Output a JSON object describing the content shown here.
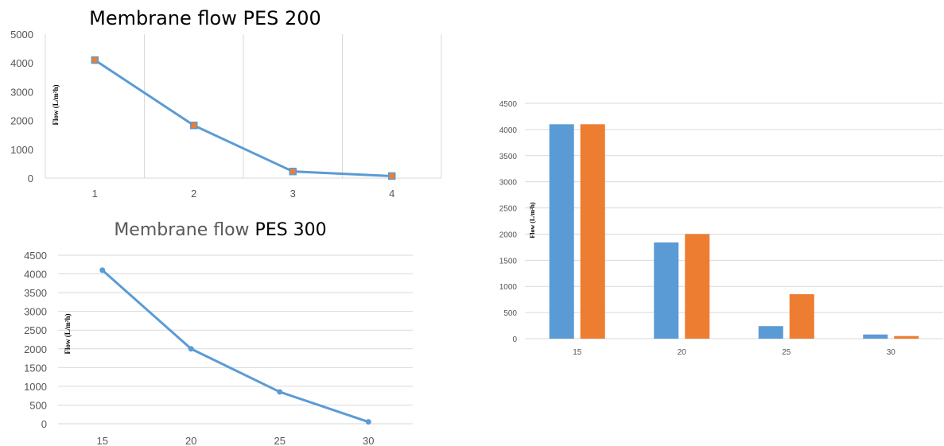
{
  "charts": [
    {
      "type": "line",
      "title": "Membrane flow PES 200",
      "ylabel": "Flow (L/m²h)",
      "categories": [
        "1",
        "2",
        "3",
        "4"
      ],
      "values": [
        4100,
        1830,
        230,
        70
      ],
      "ylim": [
        0,
        5000
      ],
      "yticks": [
        "0",
        "1000",
        "2000",
        "3000",
        "4000",
        "5000"
      ],
      "line_color": "#5B9BD5",
      "marker_color": "#ED7D31",
      "grid": "vertical"
    },
    {
      "type": "line",
      "title_part1": "Membrane flow ",
      "title_part2": "PES 300",
      "ylabel": "Flow (L/m²h)",
      "categories": [
        "15",
        "20",
        "25",
        "30"
      ],
      "values": [
        4100,
        2000,
        850,
        50
      ],
      "ylim": [
        0,
        4500
      ],
      "yticks": [
        "0",
        "500",
        "1000",
        "1500",
        "2000",
        "2500",
        "3000",
        "3500",
        "4000",
        "4500"
      ],
      "line_color": "#5B9BD5",
      "grid": "horizontal"
    },
    {
      "type": "bar",
      "ylabel": "Flow (L/m²h)",
      "categories": [
        "15",
        "20",
        "25",
        "30"
      ],
      "series": [
        {
          "values": [
            4100,
            1840,
            240,
            80
          ],
          "color": "#5B9BD5"
        },
        {
          "values": [
            4100,
            2000,
            850,
            50
          ],
          "color": "#ED7D31"
        }
      ],
      "ylim": [
        0,
        4500
      ],
      "yticks": [
        "0",
        "500",
        "1000",
        "1500",
        "2000",
        "2500",
        "3000",
        "3500",
        "4000",
        "4500"
      ],
      "grid": "horizontal"
    }
  ]
}
